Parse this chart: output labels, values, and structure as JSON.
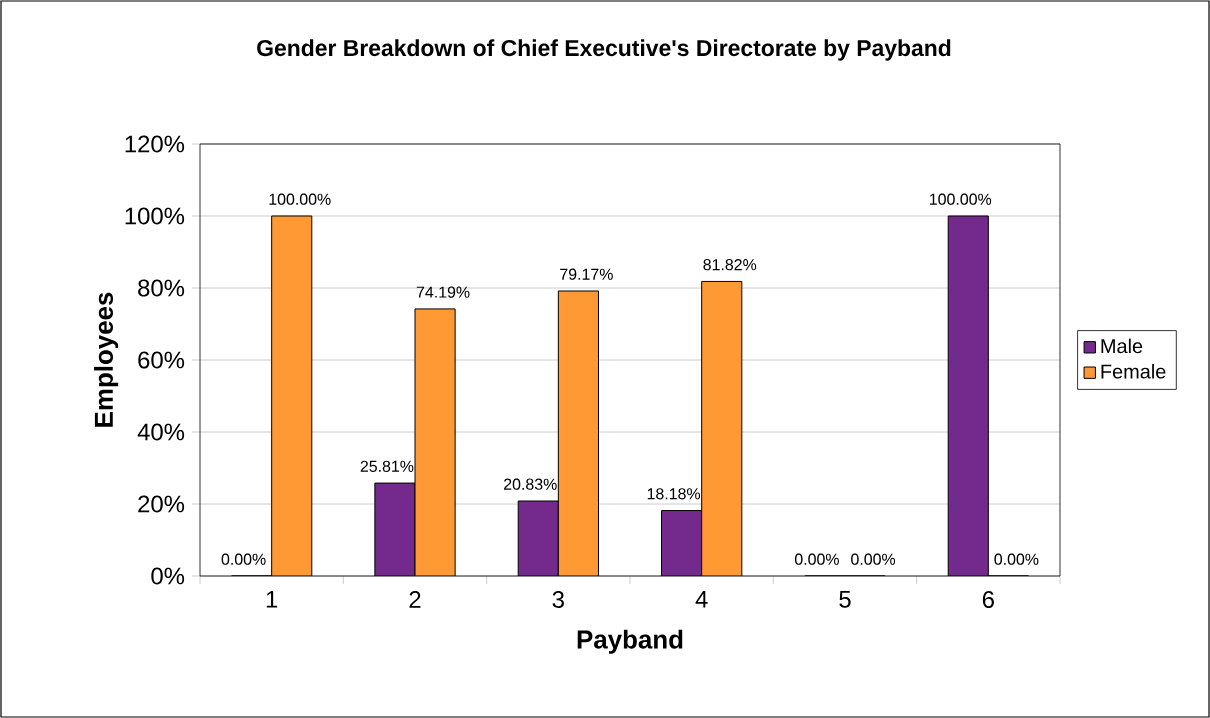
{
  "chart_data": {
    "type": "bar",
    "title": "Gender Breakdown of Chief Executive's Directorate by Payband",
    "xlabel": "Payband",
    "ylabel": "Employees",
    "categories": [
      "1",
      "2",
      "3",
      "4",
      "5",
      "6"
    ],
    "series": [
      {
        "name": "Male",
        "color": "#732a8c",
        "values": [
          0,
          25.81,
          20.83,
          18.18,
          0,
          100
        ],
        "value_labels": [
          "0.00%",
          "25.81%",
          "20.83%",
          "18.18%",
          "0.00%",
          "100.00%"
        ]
      },
      {
        "name": "Female",
        "color": "#ff9933",
        "values": [
          100,
          74.19,
          79.17,
          81.82,
          0,
          0
        ],
        "value_labels": [
          "100.00%",
          "74.19%",
          "79.17%",
          "81.82%",
          "0.00%",
          "0.00%"
        ]
      }
    ],
    "ylim": [
      0,
      120
    ],
    "yticks": [
      {
        "value": 0,
        "label": "0%"
      },
      {
        "value": 20,
        "label": "20%"
      },
      {
        "value": 40,
        "label": "40%"
      },
      {
        "value": 60,
        "label": "60%"
      },
      {
        "value": 80,
        "label": "80%"
      },
      {
        "value": 100,
        "label": "100%"
      },
      {
        "value": 120,
        "label": "120%"
      }
    ],
    "grid": "y",
    "legend": "right"
  }
}
